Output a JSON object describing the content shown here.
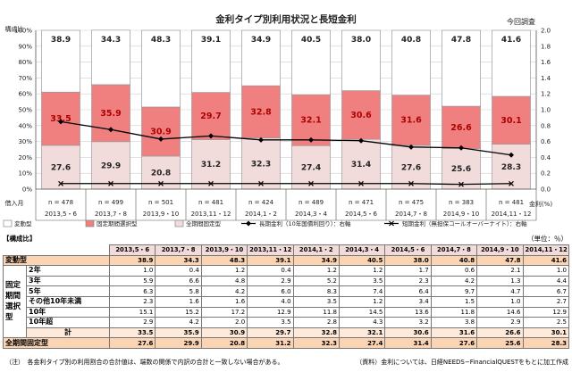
{
  "chart_data": {
    "type": "bar",
    "title": "金利タイプ別利用状況と長短金利",
    "subtitle": "今回調査",
    "ylabel_left": "構成比",
    "ylabel_right": "金利(%)",
    "left_ticks": [
      "0%",
      "10%",
      "20%",
      "30%",
      "40%",
      "50%",
      "60%",
      "70%",
      "80%",
      "90%",
      "100%"
    ],
    "right_ticks": [
      "0.0",
      "0.2",
      "0.4",
      "0.6",
      "0.8",
      "1.0",
      "1.2",
      "1.4",
      "1.6",
      "1.8",
      "2.0"
    ],
    "ylim_left": [
      0,
      100
    ],
    "ylim_right": [
      0,
      2.0
    ],
    "categories": [
      "2013,5・6",
      "2013,7・8",
      "2013,9・10",
      "2013,11・12",
      "2014,1・2",
      "2014,3・4",
      "2014,5・6",
      "2014,7・8",
      "2014,9・10",
      "2014,11・12"
    ],
    "n_labels": [
      "n = 478",
      "n = 499",
      "n = 501",
      "n = 481",
      "n = 424",
      "n = 489",
      "n = 471",
      "n = 475",
      "n = 383",
      "n = 481"
    ],
    "xlabel": "借入月",
    "series": [
      {
        "name": "全期間固定型",
        "values": [
          27.6,
          29.9,
          20.8,
          31.2,
          32.3,
          27.4,
          31.4,
          27.6,
          25.6,
          28.3
        ],
        "color": "#f2dcdb"
      },
      {
        "name": "固定期間選択型",
        "values": [
          33.5,
          35.9,
          30.9,
          29.7,
          32.8,
          32.1,
          30.6,
          31.6,
          26.6,
          30.1
        ],
        "color": "#f08080"
      },
      {
        "name": "変動型",
        "values": [
          38.9,
          34.3,
          48.3,
          39.1,
          34.9,
          40.5,
          38.0,
          40.8,
          47.8,
          41.6
        ],
        "color": "#ffffff"
      }
    ],
    "lines": [
      {
        "name": "長期金利（10年国債利回り）：右軸",
        "values": [
          0.85,
          0.75,
          0.63,
          0.67,
          0.62,
          0.62,
          0.61,
          0.53,
          0.52,
          0.43
        ]
      },
      {
        "name": "短期金利（無担保コールオーバーナイト）：右軸",
        "values": [
          0.07,
          0.07,
          0.07,
          0.07,
          0.07,
          0.07,
          0.07,
          0.07,
          0.06,
          0.07
        ]
      }
    ]
  },
  "table": {
    "caption": "【構成比】",
    "unit": "（単位：％）",
    "headers": [
      "2013,5・6",
      "2013,7・8",
      "2013,9・10",
      "2013,11・12",
      "2014,1・2",
      "2014,3・4",
      "2014,5・6",
      "2014,7・8",
      "2014,9・10",
      "2014,11・12"
    ],
    "hendo": {
      "label": "変動型",
      "values": [
        "38.9",
        "34.3",
        "48.3",
        "39.1",
        "34.9",
        "40.5",
        "38.0",
        "40.8",
        "47.8",
        "41.6"
      ]
    },
    "group_label": "固定期間選択型",
    "sub_rows": [
      {
        "label": "2年",
        "values": [
          "1.0",
          "0.4",
          "1.2",
          "0.4",
          "1.2",
          "1.2",
          "1.7",
          "0.6",
          "2.1",
          "1.0"
        ]
      },
      {
        "label": "3年",
        "values": [
          "5.9",
          "6.6",
          "4.8",
          "2.9",
          "5.2",
          "3.5",
          "2.3",
          "4.2",
          "1.3",
          "4.4"
        ]
      },
      {
        "label": "5年",
        "values": [
          "6.3",
          "5.8",
          "4.2",
          "6.0",
          "8.3",
          "7.4",
          "6.4",
          "9.7",
          "4.7",
          "6.7"
        ]
      },
      {
        "label": "その他10年未満",
        "values": [
          "2.3",
          "1.6",
          "1.6",
          "4.0",
          "3.5",
          "1.2",
          "3.4",
          "1.5",
          "1.0",
          "2.7"
        ]
      },
      {
        "label": "10年",
        "values": [
          "15.1",
          "15.2",
          "17.2",
          "12.9",
          "11.8",
          "14.5",
          "13.6",
          "11.8",
          "14.6",
          "12.9"
        ]
      },
      {
        "label": "10年超",
        "values": [
          "2.9",
          "4.2",
          "2.0",
          "3.5",
          "2.8",
          "4.3",
          "3.2",
          "3.8",
          "2.9",
          "2.5"
        ]
      }
    ],
    "kei": {
      "label": "計",
      "values": [
        "33.5",
        "35.9",
        "30.9",
        "29.7",
        "32.8",
        "32.1",
        "30.6",
        "31.6",
        "26.6",
        "30.1"
      ]
    },
    "zenkikan": {
      "label": "全期間固定型",
      "values": [
        "27.6",
        "29.9",
        "20.8",
        "31.2",
        "32.3",
        "27.4",
        "31.4",
        "27.6",
        "25.6",
        "28.3"
      ]
    }
  },
  "notes": {
    "left": "（注）　各金利タイプ別の利用割合の合計値は、端数の関係で内訳の合計と一致しない場合がある。",
    "right": "（資料）金利については、日経NEEDS−FinancialQUESTをもとに加工作成"
  }
}
